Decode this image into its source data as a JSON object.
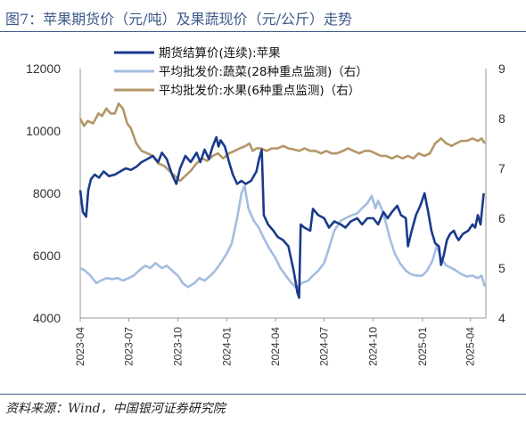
{
  "figure": {
    "title": "图7：苹果期货价（元/吨）及果蔬现价（元/公斤）走势",
    "source": "资料来源：Wind，中国银河证券研究院"
  },
  "chart_data": {
    "type": "line",
    "x_ticks": [
      "2023-04",
      "2023-07",
      "2023-10",
      "2024-01",
      "2024-04",
      "2024-07",
      "2024-10",
      "2025-01",
      "2025-04"
    ],
    "x_range": [
      "2023-04-01",
      "2025-04-30"
    ],
    "y_left": {
      "range": [
        4000,
        12000
      ],
      "ticks": [
        4000,
        6000,
        8000,
        10000,
        12000
      ]
    },
    "y_right": {
      "range": [
        4,
        9
      ],
      "ticks": [
        4,
        5,
        6,
        7,
        8,
        9
      ]
    },
    "legend_position": "top",
    "grid": false,
    "series": [
      {
        "name": "期货结算价(连续):苹果",
        "axis": "left",
        "color": "#1a3a8c",
        "points": [
          [
            "2023-04-01",
            8100
          ],
          [
            "2023-04-06",
            7400
          ],
          [
            "2023-04-12",
            7250
          ],
          [
            "2023-04-16",
            8100
          ],
          [
            "2023-04-21",
            8450
          ],
          [
            "2023-04-28",
            8600
          ],
          [
            "2023-05-06",
            8500
          ],
          [
            "2023-05-15",
            8700
          ],
          [
            "2023-05-25",
            8550
          ],
          [
            "2023-06-05",
            8600
          ],
          [
            "2023-06-15",
            8700
          ],
          [
            "2023-06-25",
            8800
          ],
          [
            "2023-07-05",
            8750
          ],
          [
            "2023-07-15",
            8850
          ],
          [
            "2023-07-25",
            9000
          ],
          [
            "2023-08-05",
            9100
          ],
          [
            "2023-08-15",
            9200
          ],
          [
            "2023-08-25",
            9000
          ],
          [
            "2023-09-01",
            9300
          ],
          [
            "2023-09-10",
            9100
          ],
          [
            "2023-09-20",
            8600
          ],
          [
            "2023-09-28",
            8300
          ],
          [
            "2023-10-05",
            8800
          ],
          [
            "2023-10-15",
            9200
          ],
          [
            "2023-10-25",
            9000
          ],
          [
            "2023-11-05",
            9300
          ],
          [
            "2023-11-12",
            9000
          ],
          [
            "2023-11-20",
            9400
          ],
          [
            "2023-11-28",
            9100
          ],
          [
            "2023-12-05",
            9500
          ],
          [
            "2023-12-12",
            9800
          ],
          [
            "2023-12-16",
            9500
          ],
          [
            "2023-12-20",
            9700
          ],
          [
            "2023-12-28",
            9500
          ],
          [
            "2024-01-05",
            9000
          ],
          [
            "2024-01-12",
            8600
          ],
          [
            "2024-01-20",
            8300
          ],
          [
            "2024-01-28",
            8400
          ],
          [
            "2024-02-05",
            8300
          ],
          [
            "2024-02-15",
            8400
          ],
          [
            "2024-02-25",
            8700
          ],
          [
            "2024-03-01",
            9100
          ],
          [
            "2024-03-06",
            9400
          ],
          [
            "2024-03-10",
            7300
          ],
          [
            "2024-03-18",
            7000
          ],
          [
            "2024-03-28",
            6800
          ],
          [
            "2024-04-05",
            6600
          ],
          [
            "2024-04-15",
            6500
          ],
          [
            "2024-04-25",
            6300
          ],
          [
            "2024-05-05",
            5500
          ],
          [
            "2024-05-12",
            4800
          ],
          [
            "2024-05-15",
            4650
          ],
          [
            "2024-05-18",
            7000
          ],
          [
            "2024-05-25",
            6900
          ],
          [
            "2024-06-05",
            6800
          ],
          [
            "2024-06-10",
            7500
          ],
          [
            "2024-06-20",
            7300
          ],
          [
            "2024-07-01",
            7200
          ],
          [
            "2024-07-10",
            6900
          ],
          [
            "2024-07-20",
            7100
          ],
          [
            "2024-08-01",
            7000
          ],
          [
            "2024-08-10",
            6900
          ],
          [
            "2024-08-20",
            7100
          ],
          [
            "2024-09-01",
            7200
          ],
          [
            "2024-09-10",
            7000
          ],
          [
            "2024-09-20",
            7200
          ],
          [
            "2024-10-01",
            7200
          ],
          [
            "2024-10-10",
            7000
          ],
          [
            "2024-10-20",
            7400
          ],
          [
            "2024-10-28",
            7200
          ],
          [
            "2024-11-05",
            7400
          ],
          [
            "2024-11-15",
            7600
          ],
          [
            "2024-11-22",
            7300
          ],
          [
            "2024-12-01",
            7200
          ],
          [
            "2024-12-05",
            6300
          ],
          [
            "2024-12-12",
            6800
          ],
          [
            "2024-12-20",
            7300
          ],
          [
            "2024-12-28",
            7600
          ],
          [
            "2025-01-05",
            8000
          ],
          [
            "2025-01-12",
            7400
          ],
          [
            "2025-01-18",
            6800
          ],
          [
            "2025-01-25",
            6400
          ],
          [
            "2025-02-01",
            6300
          ],
          [
            "2025-02-05",
            5700
          ],
          [
            "2025-02-10",
            6000
          ],
          [
            "2025-02-16",
            6500
          ],
          [
            "2025-02-22",
            6700
          ],
          [
            "2025-03-01",
            6800
          ],
          [
            "2025-03-06",
            6600
          ],
          [
            "2025-03-10",
            6500
          ],
          [
            "2025-03-18",
            6700
          ],
          [
            "2025-03-28",
            6800
          ],
          [
            "2025-04-05",
            7000
          ],
          [
            "2025-04-10",
            6900
          ],
          [
            "2025-04-15",
            7300
          ],
          [
            "2025-04-20",
            7000
          ],
          [
            "2025-04-26",
            8000
          ]
        ]
      },
      {
        "name": "平均批发价:蔬菜(28种重点监测)（右）",
        "axis": "right",
        "color": "#a3bde0",
        "points": [
          [
            "2023-04-01",
            5.0
          ],
          [
            "2023-04-10",
            4.95
          ],
          [
            "2023-04-20",
            4.85
          ],
          [
            "2023-05-01",
            4.7
          ],
          [
            "2023-05-10",
            4.75
          ],
          [
            "2023-05-20",
            4.8
          ],
          [
            "2023-06-01",
            4.78
          ],
          [
            "2023-06-10",
            4.8
          ],
          [
            "2023-06-20",
            4.75
          ],
          [
            "2023-07-01",
            4.8
          ],
          [
            "2023-07-10",
            4.85
          ],
          [
            "2023-07-20",
            4.95
          ],
          [
            "2023-08-01",
            5.05
          ],
          [
            "2023-08-10",
            5.0
          ],
          [
            "2023-08-20",
            5.1
          ],
          [
            "2023-09-01",
            5.0
          ],
          [
            "2023-09-10",
            5.05
          ],
          [
            "2023-09-20",
            4.95
          ],
          [
            "2023-10-01",
            4.85
          ],
          [
            "2023-10-10",
            4.7
          ],
          [
            "2023-10-20",
            4.62
          ],
          [
            "2023-11-01",
            4.7
          ],
          [
            "2023-11-10",
            4.8
          ],
          [
            "2023-11-20",
            4.75
          ],
          [
            "2023-12-01",
            4.85
          ],
          [
            "2023-12-10",
            4.95
          ],
          [
            "2023-12-20",
            5.1
          ],
          [
            "2024-01-01",
            5.3
          ],
          [
            "2024-01-10",
            5.5
          ],
          [
            "2024-01-20",
            6.0
          ],
          [
            "2024-01-28",
            6.5
          ],
          [
            "2024-02-03",
            6.65
          ],
          [
            "2024-02-10",
            6.2
          ],
          [
            "2024-02-20",
            5.95
          ],
          [
            "2024-03-01",
            5.8
          ],
          [
            "2024-03-10",
            5.6
          ],
          [
            "2024-03-20",
            5.4
          ],
          [
            "2024-04-01",
            5.2
          ],
          [
            "2024-04-10",
            5.0
          ],
          [
            "2024-04-20",
            4.85
          ],
          [
            "2024-05-01",
            4.7
          ],
          [
            "2024-05-10",
            4.6
          ],
          [
            "2024-05-20",
            4.7
          ],
          [
            "2024-06-01",
            4.75
          ],
          [
            "2024-06-10",
            4.85
          ],
          [
            "2024-06-20",
            4.95
          ],
          [
            "2024-07-01",
            5.1
          ],
          [
            "2024-07-10",
            5.4
          ],
          [
            "2024-07-20",
            5.75
          ],
          [
            "2024-08-01",
            5.95
          ],
          [
            "2024-08-10",
            6.0
          ],
          [
            "2024-08-20",
            6.05
          ],
          [
            "2024-09-01",
            6.1
          ],
          [
            "2024-09-10",
            6.2
          ],
          [
            "2024-09-20",
            6.3
          ],
          [
            "2024-09-28",
            6.45
          ],
          [
            "2024-10-05",
            6.2
          ],
          [
            "2024-10-10",
            6.35
          ],
          [
            "2024-10-20",
            6.1
          ],
          [
            "2024-11-01",
            5.6
          ],
          [
            "2024-11-10",
            5.3
          ],
          [
            "2024-11-20",
            5.1
          ],
          [
            "2024-12-01",
            4.95
          ],
          [
            "2024-12-10",
            4.88
          ],
          [
            "2024-12-20",
            4.85
          ],
          [
            "2025-01-01",
            4.85
          ],
          [
            "2025-01-10",
            4.95
          ],
          [
            "2025-01-20",
            5.15
          ],
          [
            "2025-01-28",
            5.45
          ],
          [
            "2025-02-05",
            5.2
          ],
          [
            "2025-02-15",
            5.05
          ],
          [
            "2025-02-25",
            5.0
          ],
          [
            "2025-03-05",
            4.95
          ],
          [
            "2025-03-15",
            4.88
          ],
          [
            "2025-03-25",
            4.83
          ],
          [
            "2025-04-05",
            4.85
          ],
          [
            "2025-04-15",
            4.8
          ],
          [
            "2025-04-22",
            4.85
          ],
          [
            "2025-04-28",
            4.63
          ]
        ]
      },
      {
        "name": "平均批发价:水果(6种重点监测)（右）",
        "axis": "right",
        "color": "#b4966a",
        "points": [
          [
            "2023-04-01",
            8.0
          ],
          [
            "2023-04-08",
            7.85
          ],
          [
            "2023-04-15",
            7.95
          ],
          [
            "2023-04-25",
            7.9
          ],
          [
            "2023-05-05",
            8.1
          ],
          [
            "2023-05-12",
            8.05
          ],
          [
            "2023-05-20",
            8.2
          ],
          [
            "2023-05-28",
            8.1
          ],
          [
            "2023-06-05",
            8.1
          ],
          [
            "2023-06-12",
            8.3
          ],
          [
            "2023-06-20",
            8.2
          ],
          [
            "2023-06-28",
            7.9
          ],
          [
            "2023-07-05",
            7.8
          ],
          [
            "2023-07-15",
            7.5
          ],
          [
            "2023-07-25",
            7.35
          ],
          [
            "2023-08-05",
            7.3
          ],
          [
            "2023-08-15",
            7.25
          ],
          [
            "2023-08-25",
            7.1
          ],
          [
            "2023-09-05",
            7.05
          ],
          [
            "2023-09-15",
            6.95
          ],
          [
            "2023-09-25",
            6.85
          ],
          [
            "2023-10-05",
            6.75
          ],
          [
            "2023-10-15",
            6.85
          ],
          [
            "2023-10-25",
            6.95
          ],
          [
            "2023-11-05",
            7.1
          ],
          [
            "2023-11-15",
            7.2
          ],
          [
            "2023-11-25",
            7.15
          ],
          [
            "2023-12-05",
            7.25
          ],
          [
            "2023-12-15",
            7.3
          ],
          [
            "2023-12-25",
            7.2
          ],
          [
            "2024-01-05",
            7.3
          ],
          [
            "2024-01-15",
            7.35
          ],
          [
            "2024-01-25",
            7.4
          ],
          [
            "2024-02-05",
            7.45
          ],
          [
            "2024-02-12",
            7.5
          ],
          [
            "2024-02-18",
            7.35
          ],
          [
            "2024-02-25",
            7.4
          ],
          [
            "2024-03-05",
            7.4
          ],
          [
            "2024-03-15",
            7.35
          ],
          [
            "2024-03-25",
            7.4
          ],
          [
            "2024-04-05",
            7.4
          ],
          [
            "2024-04-15",
            7.45
          ],
          [
            "2024-04-25",
            7.4
          ],
          [
            "2024-05-05",
            7.38
          ],
          [
            "2024-05-15",
            7.35
          ],
          [
            "2024-05-25",
            7.4
          ],
          [
            "2024-06-05",
            7.35
          ],
          [
            "2024-06-15",
            7.35
          ],
          [
            "2024-06-25",
            7.3
          ],
          [
            "2024-07-05",
            7.35
          ],
          [
            "2024-07-15",
            7.3
          ],
          [
            "2024-07-25",
            7.3
          ],
          [
            "2024-08-05",
            7.35
          ],
          [
            "2024-08-15",
            7.4
          ],
          [
            "2024-08-25",
            7.35
          ],
          [
            "2024-09-05",
            7.3
          ],
          [
            "2024-09-15",
            7.35
          ],
          [
            "2024-09-25",
            7.35
          ],
          [
            "2024-10-05",
            7.3
          ],
          [
            "2024-10-15",
            7.25
          ],
          [
            "2024-10-25",
            7.25
          ],
          [
            "2024-11-05",
            7.2
          ],
          [
            "2024-11-15",
            7.25
          ],
          [
            "2024-11-25",
            7.2
          ],
          [
            "2024-12-05",
            7.25
          ],
          [
            "2024-12-15",
            7.2
          ],
          [
            "2024-12-25",
            7.3
          ],
          [
            "2025-01-05",
            7.25
          ],
          [
            "2025-01-15",
            7.3
          ],
          [
            "2025-01-25",
            7.5
          ],
          [
            "2025-02-05",
            7.6
          ],
          [
            "2025-02-15",
            7.5
          ],
          [
            "2025-02-25",
            7.45
          ],
          [
            "2025-03-05",
            7.5
          ],
          [
            "2025-03-15",
            7.55
          ],
          [
            "2025-03-25",
            7.55
          ],
          [
            "2025-04-05",
            7.6
          ],
          [
            "2025-04-15",
            7.55
          ],
          [
            "2025-04-22",
            7.6
          ],
          [
            "2025-04-28",
            7.5
          ]
        ]
      }
    ]
  }
}
